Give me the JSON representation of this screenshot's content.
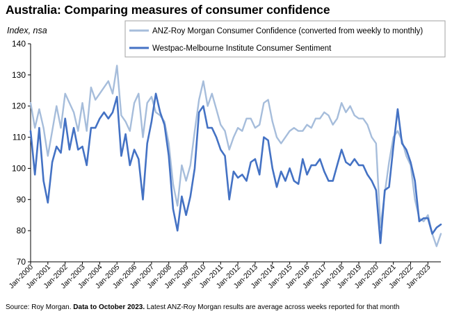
{
  "title": "Australia: Comparing measures of consumer confidence",
  "subtitle": "Index, nsa",
  "source": {
    "prefix": "Source: Roy Morgan.",
    "bold": "Data to October 2023.",
    "suffix": "Latest ANZ-Roy Morgan results are average across weeks reported for that month"
  },
  "colors": {
    "anz": "#a6bddb",
    "westpac": "#4472c4",
    "axis": "#000000"
  },
  "chart_data": {
    "type": "line",
    "title": "Australia: Comparing measures of consumer confidence",
    "ylabel": "Index, nsa",
    "ylim": [
      70,
      140
    ],
    "yticks": [
      70,
      80,
      90,
      100,
      110,
      120,
      130,
      140
    ],
    "xlim": [
      2000.0,
      2023.75
    ],
    "xticks": [
      "Jan-2000",
      "Jan-2001",
      "Jan-2002",
      "Jan-2003",
      "Jan-2004",
      "Jan-2005",
      "Jan-2006",
      "Jan-2007",
      "Jan-2008",
      "Jan-2009",
      "Jan-2010",
      "Jan-2011",
      "Jan-2012",
      "Jan-2013",
      "Jan-2014",
      "Jan-2015",
      "Jan-2016",
      "Jan-2017",
      "Jan-2018",
      "Jan-2019",
      "Jan-2020",
      "Jan-2021",
      "Jan-2022",
      "Jan-2023"
    ],
    "legend": "top-right",
    "series": [
      {
        "name": "ANZ-Roy Morgan Consumer Confidence (converted from weekly to monthly)",
        "color": "#a6bddb",
        "points": [
          [
            2000.0,
            121
          ],
          [
            2000.25,
            113
          ],
          [
            2000.5,
            119
          ],
          [
            2000.75,
            113
          ],
          [
            2001.0,
            104
          ],
          [
            2001.25,
            112
          ],
          [
            2001.5,
            120
          ],
          [
            2001.75,
            113
          ],
          [
            2002.0,
            124
          ],
          [
            2002.25,
            121
          ],
          [
            2002.5,
            118
          ],
          [
            2002.75,
            112
          ],
          [
            2003.0,
            121
          ],
          [
            2003.25,
            112
          ],
          [
            2003.5,
            126
          ],
          [
            2003.75,
            122
          ],
          [
            2004.0,
            124
          ],
          [
            2004.25,
            126
          ],
          [
            2004.5,
            128
          ],
          [
            2004.75,
            124
          ],
          [
            2005.0,
            133
          ],
          [
            2005.25,
            117
          ],
          [
            2005.5,
            115
          ],
          [
            2005.75,
            112
          ],
          [
            2006.0,
            121
          ],
          [
            2006.25,
            124
          ],
          [
            2006.5,
            110
          ],
          [
            2006.75,
            121
          ],
          [
            2007.0,
            123
          ],
          [
            2007.25,
            118
          ],
          [
            2007.5,
            117
          ],
          [
            2007.75,
            115
          ],
          [
            2008.0,
            108
          ],
          [
            2008.25,
            95
          ],
          [
            2008.5,
            88
          ],
          [
            2008.75,
            101
          ],
          [
            2009.0,
            96
          ],
          [
            2009.25,
            101
          ],
          [
            2009.5,
            112
          ],
          [
            2009.75,
            122
          ],
          [
            2010.0,
            128
          ],
          [
            2010.25,
            120
          ],
          [
            2010.5,
            124
          ],
          [
            2010.75,
            119
          ],
          [
            2011.0,
            114
          ],
          [
            2011.25,
            112
          ],
          [
            2011.5,
            106
          ],
          [
            2011.75,
            110
          ],
          [
            2012.0,
            113
          ],
          [
            2012.25,
            112
          ],
          [
            2012.5,
            116
          ],
          [
            2012.75,
            116
          ],
          [
            2013.0,
            113
          ],
          [
            2013.25,
            114
          ],
          [
            2013.5,
            121
          ],
          [
            2013.75,
            122
          ],
          [
            2014.0,
            115
          ],
          [
            2014.25,
            110
          ],
          [
            2014.5,
            108
          ],
          [
            2014.75,
            110
          ],
          [
            2015.0,
            112
          ],
          [
            2015.25,
            113
          ],
          [
            2015.5,
            112
          ],
          [
            2015.75,
            112
          ],
          [
            2016.0,
            114
          ],
          [
            2016.25,
            113
          ],
          [
            2016.5,
            116
          ],
          [
            2016.75,
            116
          ],
          [
            2017.0,
            118
          ],
          [
            2017.25,
            117
          ],
          [
            2017.5,
            114
          ],
          [
            2017.75,
            116
          ],
          [
            2018.0,
            121
          ],
          [
            2018.25,
            118
          ],
          [
            2018.5,
            120
          ],
          [
            2018.75,
            117
          ],
          [
            2019.0,
            116
          ],
          [
            2019.25,
            116
          ],
          [
            2019.5,
            114
          ],
          [
            2019.75,
            110
          ],
          [
            2020.0,
            108
          ],
          [
            2020.25,
            81
          ],
          [
            2020.5,
            92
          ],
          [
            2020.75,
            102
          ],
          [
            2021.0,
            110
          ],
          [
            2021.25,
            112
          ],
          [
            2021.5,
            109
          ],
          [
            2021.75,
            104
          ],
          [
            2022.0,
            101
          ],
          [
            2022.25,
            90
          ],
          [
            2022.5,
            84
          ],
          [
            2022.75,
            83
          ],
          [
            2023.0,
            85
          ],
          [
            2023.25,
            79
          ],
          [
            2023.5,
            75
          ],
          [
            2023.75,
            79
          ]
        ]
      },
      {
        "name": "Westpac-Melbourne Institute Consumer Sentiment",
        "color": "#4472c4",
        "points": [
          [
            2000.0,
            112
          ],
          [
            2000.25,
            98
          ],
          [
            2000.5,
            113
          ],
          [
            2000.75,
            96
          ],
          [
            2001.0,
            89
          ],
          [
            2001.25,
            102
          ],
          [
            2001.5,
            107
          ],
          [
            2001.75,
            105
          ],
          [
            2002.0,
            116
          ],
          [
            2002.25,
            106
          ],
          [
            2002.5,
            113
          ],
          [
            2002.75,
            106
          ],
          [
            2003.0,
            107
          ],
          [
            2003.25,
            101
          ],
          [
            2003.5,
            113
          ],
          [
            2003.75,
            113
          ],
          [
            2004.0,
            116
          ],
          [
            2004.25,
            118
          ],
          [
            2004.5,
            116
          ],
          [
            2004.75,
            118
          ],
          [
            2005.0,
            123
          ],
          [
            2005.25,
            104
          ],
          [
            2005.5,
            111
          ],
          [
            2005.75,
            101
          ],
          [
            2006.0,
            106
          ],
          [
            2006.25,
            103
          ],
          [
            2006.5,
            90
          ],
          [
            2006.75,
            108
          ],
          [
            2007.0,
            115
          ],
          [
            2007.25,
            124
          ],
          [
            2007.5,
            118
          ],
          [
            2007.75,
            114
          ],
          [
            2008.0,
            104
          ],
          [
            2008.25,
            87
          ],
          [
            2008.5,
            80
          ],
          [
            2008.75,
            91
          ],
          [
            2009.0,
            85
          ],
          [
            2009.25,
            91
          ],
          [
            2009.5,
            100
          ],
          [
            2009.75,
            118
          ],
          [
            2010.0,
            120
          ],
          [
            2010.25,
            113
          ],
          [
            2010.5,
            113
          ],
          [
            2010.75,
            110
          ],
          [
            2011.0,
            106
          ],
          [
            2011.25,
            104
          ],
          [
            2011.5,
            90
          ],
          [
            2011.75,
            99
          ],
          [
            2012.0,
            97
          ],
          [
            2012.25,
            98
          ],
          [
            2012.5,
            96
          ],
          [
            2012.75,
            102
          ],
          [
            2013.0,
            103
          ],
          [
            2013.25,
            98
          ],
          [
            2013.5,
            110
          ],
          [
            2013.75,
            109
          ],
          [
            2014.0,
            100
          ],
          [
            2014.25,
            94
          ],
          [
            2014.5,
            99
          ],
          [
            2014.75,
            96
          ],
          [
            2015.0,
            100
          ],
          [
            2015.25,
            96
          ],
          [
            2015.5,
            95
          ],
          [
            2015.75,
            103
          ],
          [
            2016.0,
            98
          ],
          [
            2016.25,
            101
          ],
          [
            2016.5,
            101
          ],
          [
            2016.75,
            103
          ],
          [
            2017.0,
            99
          ],
          [
            2017.25,
            96
          ],
          [
            2017.5,
            96
          ],
          [
            2017.75,
            101
          ],
          [
            2018.0,
            106
          ],
          [
            2018.25,
            102
          ],
          [
            2018.5,
            101
          ],
          [
            2018.75,
            103
          ],
          [
            2019.0,
            101
          ],
          [
            2019.25,
            101
          ],
          [
            2019.5,
            98
          ],
          [
            2019.75,
            96
          ],
          [
            2020.0,
            93
          ],
          [
            2020.25,
            76
          ],
          [
            2020.5,
            93
          ],
          [
            2020.75,
            94
          ],
          [
            2021.0,
            107
          ],
          [
            2021.25,
            119
          ],
          [
            2021.5,
            108
          ],
          [
            2021.75,
            106
          ],
          [
            2022.0,
            102
          ],
          [
            2022.25,
            96
          ],
          [
            2022.5,
            83
          ],
          [
            2022.75,
            84
          ],
          [
            2023.0,
            84
          ],
          [
            2023.25,
            79
          ],
          [
            2023.5,
            81
          ],
          [
            2023.75,
            82
          ]
        ]
      }
    ]
  }
}
